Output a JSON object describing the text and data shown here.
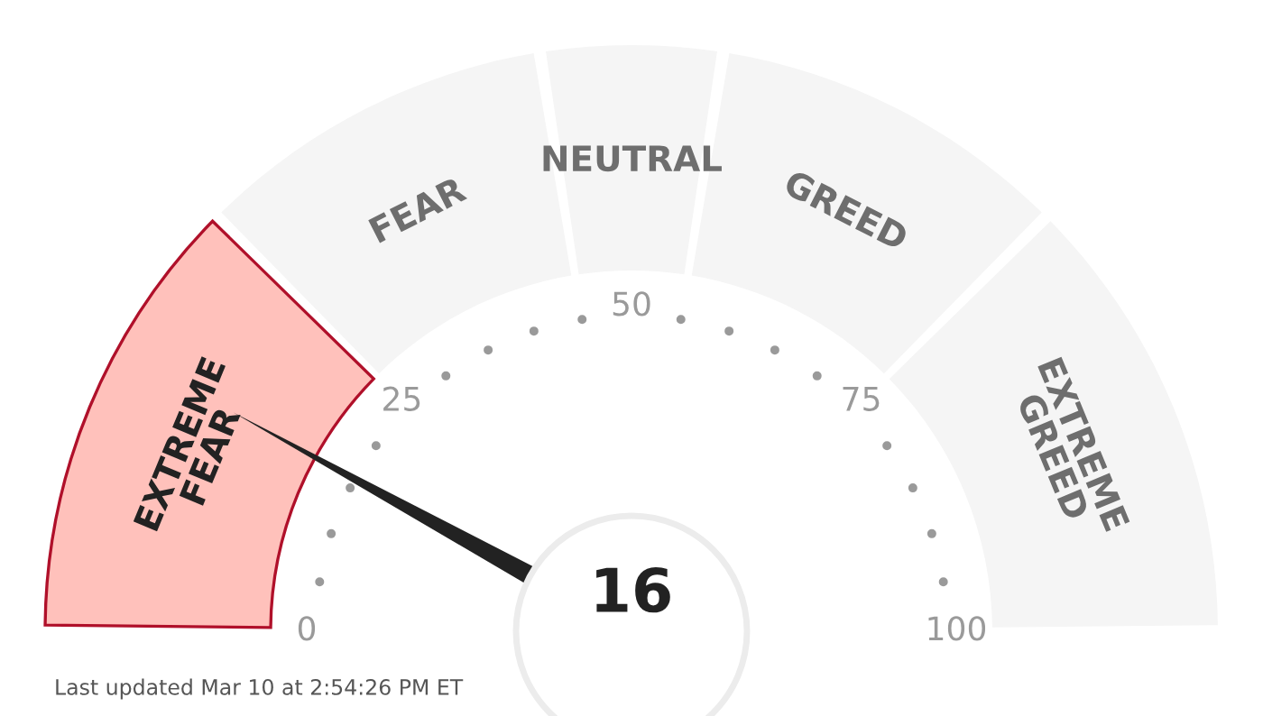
{
  "chart_data": {
    "type": "donut",
    "categories": [
      "EXTREME FEAR",
      "FEAR",
      "NEUTRAL",
      "GREED",
      "EXTREME GREED"
    ],
    "values": [
      25,
      20,
      10,
      20,
      25
    ],
    "colors": [
      "#ffc1bb",
      "#f5f5f5",
      "#f5f5f5",
      "#f5f5f5",
      "#f5f5f5"
    ],
    "needle": "EXTREME FEAR",
    "annotations": [
      "0",
      "25",
      "50",
      "75",
      "100",
      "16",
      "Last updated Mar 10 at 2:54:26 PM ET"
    ]
  }
}
